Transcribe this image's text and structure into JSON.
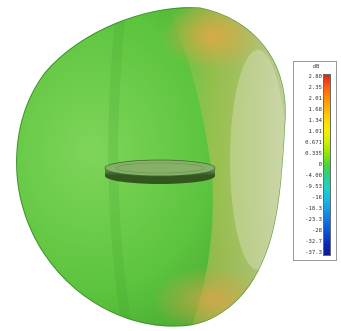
{
  "diagram": {
    "object": "3d-radiation-pattern",
    "antenna": "disc-antenna"
  },
  "legend": {
    "unit": "dB",
    "ticks": [
      "2.80",
      "2.35",
      "2.01",
      "1.68",
      "1.34",
      "1.01",
      "0.671",
      "0.335",
      "0",
      "-4.00",
      "-9.53",
      "-16",
      "-18.3",
      "-23.3",
      "-28",
      "-32.7",
      "-37.3"
    ],
    "colors": [
      "#e02418",
      "#ff5a10",
      "#ff8c00",
      "#ffb300",
      "#ffd800",
      "#f2ef00",
      "#c8f000",
      "#8fe800",
      "#47d63a",
      "#2ccf86",
      "#1fd1c8",
      "#12bde8",
      "#109be6",
      "#0f73e2",
      "#0b4fd8",
      "#0a2cbd",
      "#0a1a96"
    ]
  },
  "colors": {
    "pattern_base": "#5cc43e",
    "pattern_hot": "#d6b24e",
    "pattern_shadow": "#3c9a2a",
    "antenna": "#5c8a44"
  }
}
